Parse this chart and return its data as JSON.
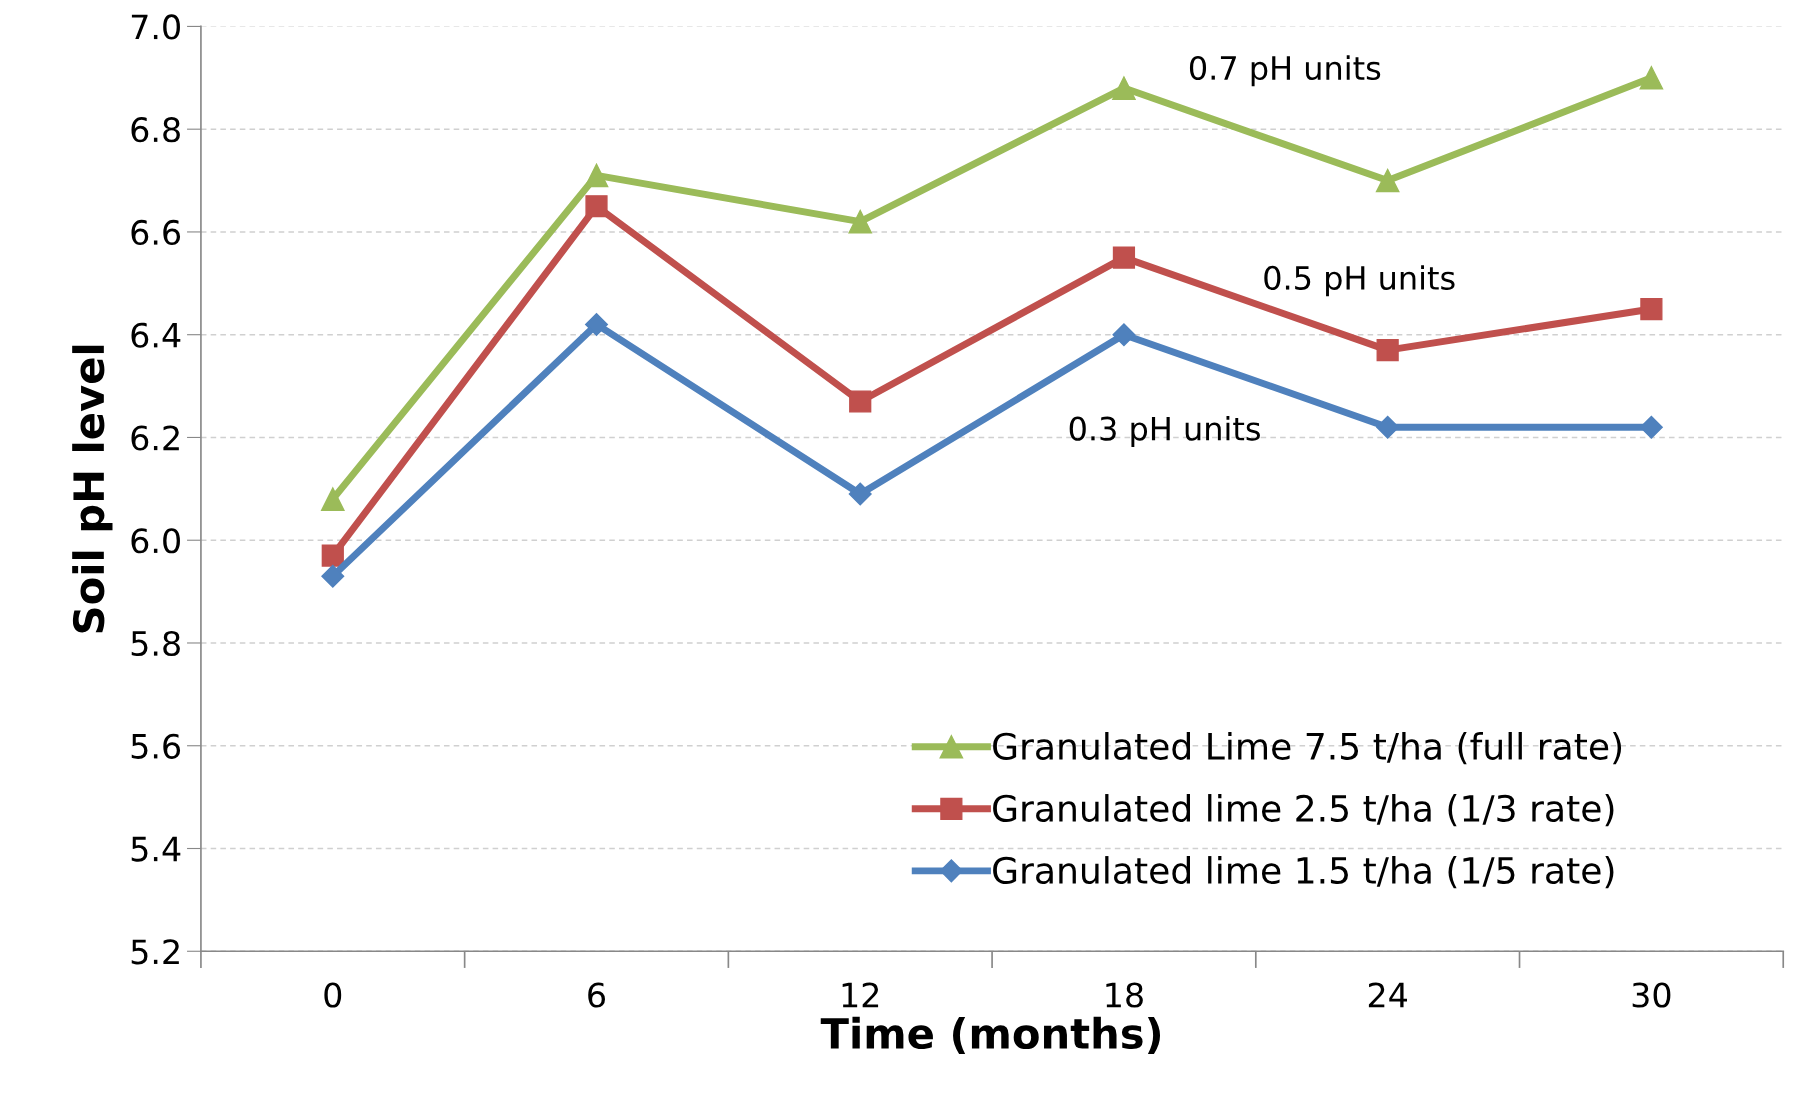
{
  "chart_data": {
    "type": "line",
    "xlabel": "Time (months)",
    "ylabel": "Soil pH level",
    "categories": [
      "0",
      "6",
      "12",
      "18",
      "24",
      "30"
    ],
    "series": [
      {
        "name": "Granulated Lime 7.5 t/ha (full rate)",
        "color": "#9bbb59",
        "marker": "triangle",
        "values": [
          6.08,
          6.71,
          6.62,
          6.88,
          6.7,
          6.9
        ]
      },
      {
        "name": "Granulated lime 2.5 t/ha (1/3 rate)",
        "color": "#c0504d",
        "marker": "square",
        "values": [
          5.97,
          6.65,
          6.27,
          6.55,
          6.37,
          6.45
        ]
      },
      {
        "name": "Granulated lime 1.5 t/ha (1/5 rate)",
        "color": "#4f81bd",
        "marker": "diamond",
        "values": [
          5.93,
          6.42,
          6.09,
          6.4,
          6.22,
          6.22
        ]
      }
    ],
    "ylim": [
      5.2,
      7.0
    ],
    "yticks": [
      5.2,
      5.4,
      5.6,
      5.8,
      {
        "value": 6,
        "label": "6.0"
      },
      6.2,
      6.4,
      6.6,
      6.8,
      {
        "value": 7,
        "label": "7.0"
      }
    ],
    "grid": "y",
    "legend": "bottom right",
    "line_style": "solid",
    "annotations": [
      "0.7 pH units",
      "0.5 pH units",
      "0.3 pH units"
    ]
  }
}
